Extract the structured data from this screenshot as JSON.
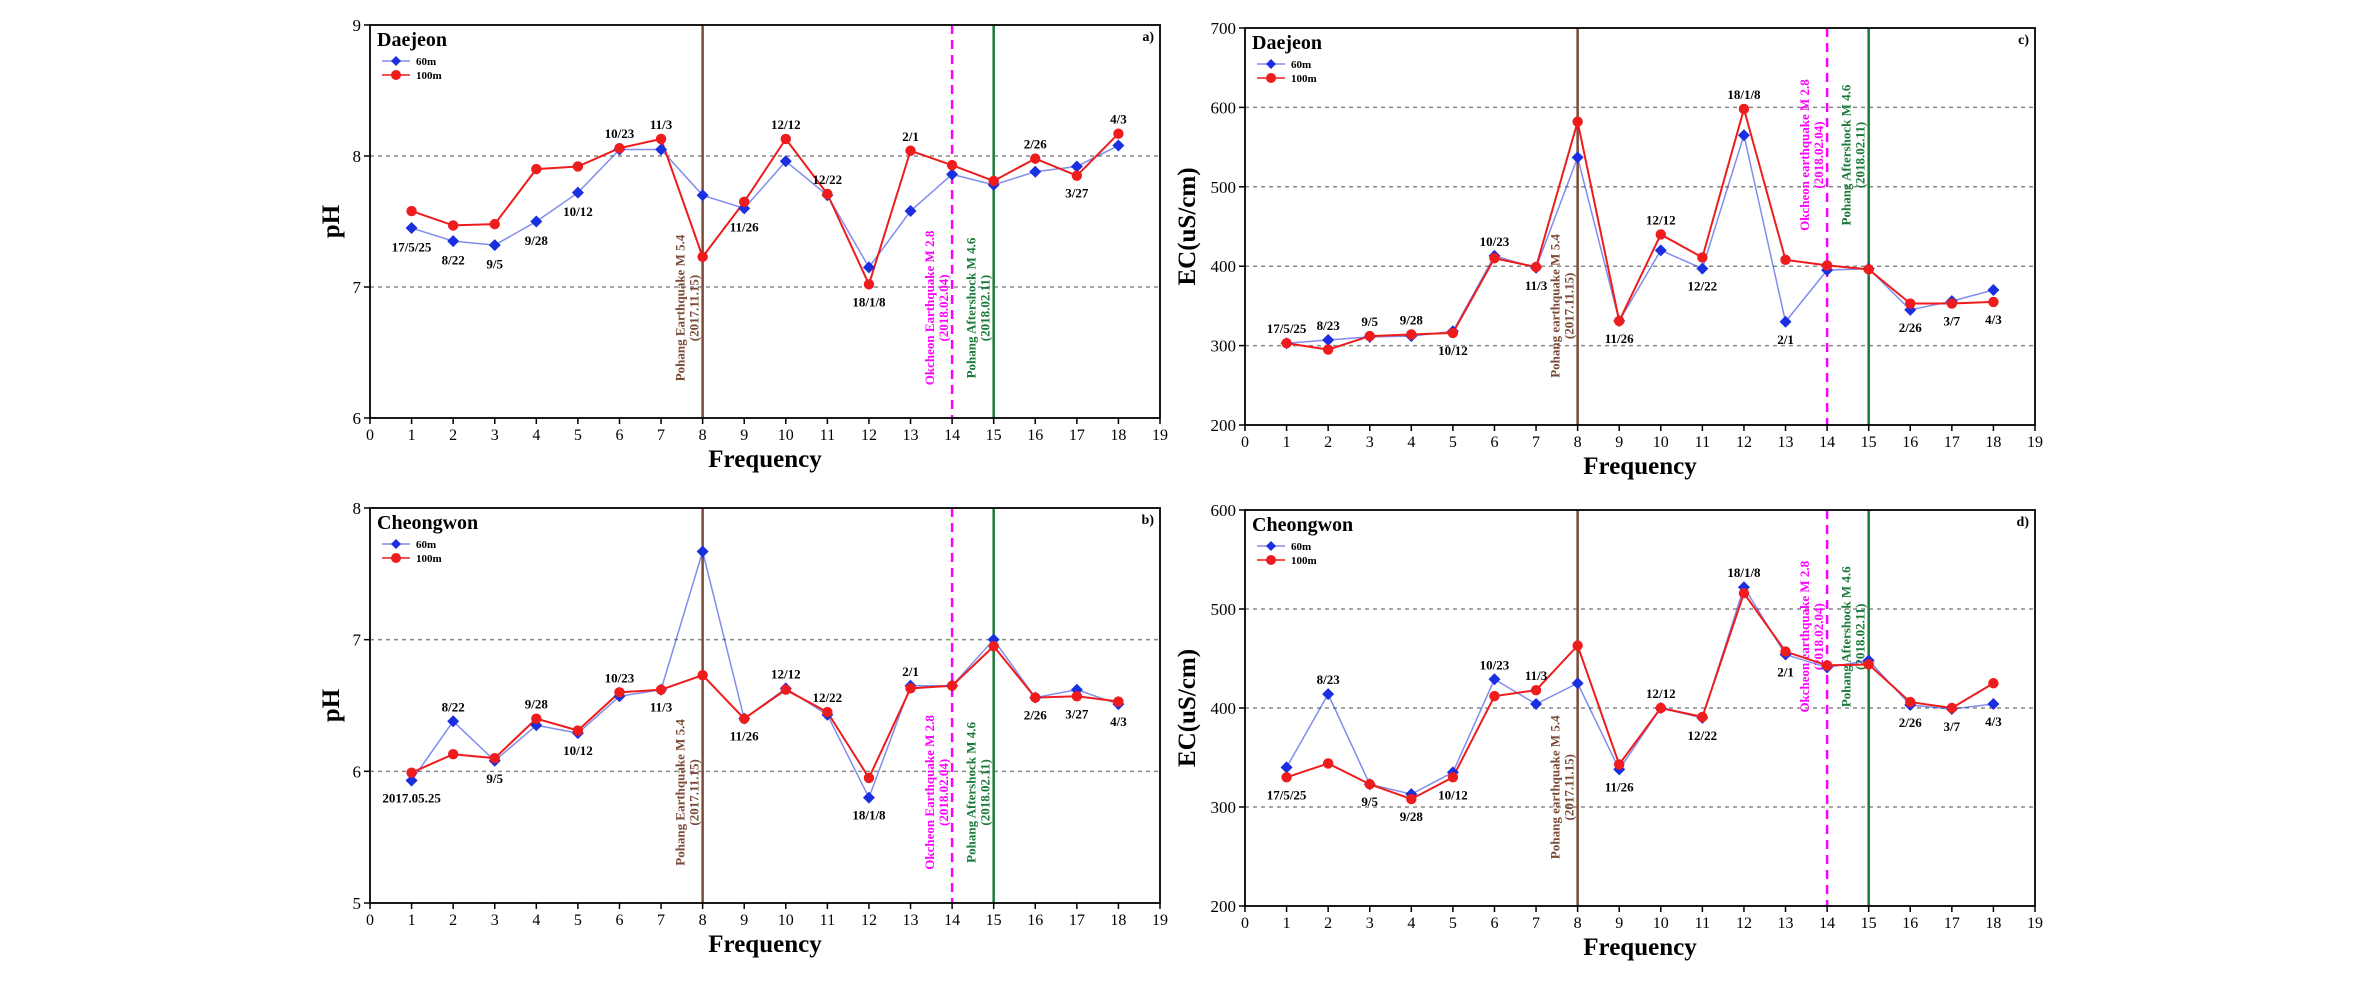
{
  "colors": {
    "series_60m": "#1a2fe0",
    "series_100m": "#ee1c1c",
    "pohang": "#7a4a38",
    "okcheon": "#ff00ff",
    "aftershock": "#1a7a3a",
    "grid": "#888888"
  },
  "chart_data": [
    {
      "type": "line",
      "id": "a",
      "panel_label": "a)",
      "station": "Daejeon",
      "xlabel": "Frequency",
      "ylabel": "pH",
      "xlim": [
        0,
        19
      ],
      "ylim": [
        6,
        9
      ],
      "yticks": [
        6,
        7,
        8,
        9
      ],
      "grid_y": [
        7,
        8
      ],
      "xticks": [
        0,
        1,
        2,
        3,
        4,
        5,
        6,
        7,
        8,
        9,
        10,
        11,
        12,
        13,
        14,
        15,
        16,
        17,
        18,
        19
      ],
      "x": [
        1,
        2,
        3,
        4,
        5,
        6,
        7,
        8,
        9,
        10,
        11,
        12,
        13,
        14,
        15,
        16,
        17,
        18
      ],
      "series": [
        {
          "name": "60m",
          "values": [
            7.45,
            7.35,
            7.32,
            7.5,
            7.72,
            8.05,
            8.05,
            7.7,
            7.6,
            7.96,
            7.7,
            7.15,
            7.58,
            7.86,
            7.78,
            7.88,
            7.92,
            8.08
          ]
        },
        {
          "name": "100m",
          "values": [
            7.58,
            7.47,
            7.48,
            7.9,
            7.92,
            8.06,
            8.13,
            7.23,
            7.65,
            8.13,
            7.71,
            7.02,
            8.04,
            7.93,
            7.81,
            7.98,
            7.85,
            8.17
          ]
        }
      ],
      "annotations": [
        {
          "x": 1,
          "y": 7.44,
          "text": "17/5/25",
          "pos": "below"
        },
        {
          "x": 2,
          "y": 7.34,
          "text": "8/22",
          "pos": "below"
        },
        {
          "x": 3,
          "y": 7.31,
          "text": "9/5",
          "pos": "below"
        },
        {
          "x": 4,
          "y": 7.49,
          "text": "9/28",
          "pos": "below"
        },
        {
          "x": 5,
          "y": 7.71,
          "text": "10/12",
          "pos": "below"
        },
        {
          "x": 6,
          "y": 8.06,
          "text": "10/23",
          "pos": "above"
        },
        {
          "x": 7,
          "y": 8.13,
          "text": "11/3",
          "pos": "above"
        },
        {
          "x": 9,
          "y": 7.59,
          "text": "11/26",
          "pos": "below"
        },
        {
          "x": 10,
          "y": 8.13,
          "text": "12/12",
          "pos": "above"
        },
        {
          "x": 11,
          "y": 7.71,
          "text": "12/22",
          "pos": "above"
        },
        {
          "x": 12,
          "y": 7.02,
          "text": "18/1/8",
          "pos": "below"
        },
        {
          "x": 13,
          "y": 8.04,
          "text": "2/1",
          "pos": "above"
        },
        {
          "x": 16,
          "y": 7.98,
          "text": "2/26",
          "pos": "above"
        },
        {
          "x": 17,
          "y": 7.85,
          "text": "3/27",
          "pos": "below"
        },
        {
          "x": 18,
          "y": 8.17,
          "text": "4/3",
          "pos": "above"
        }
      ],
      "event_lines": [
        {
          "x": 8,
          "type": "pohang",
          "label": "Pohang Earthquake M 5.4",
          "date": "(2017.11.15)"
        },
        {
          "x": 14,
          "type": "okcheon",
          "label": "Okcheon Earthquake M 2.8",
          "date": "(2018.02.04)"
        },
        {
          "x": 15,
          "type": "aftershock",
          "label": "Pohang Aftershock M 4.6",
          "date": "(2018.02.11)"
        }
      ]
    },
    {
      "type": "line",
      "id": "b",
      "panel_label": "b)",
      "station": "Cheongwon",
      "xlabel": "Frequency",
      "ylabel": "pH",
      "xlim": [
        0,
        19
      ],
      "ylim": [
        5,
        8
      ],
      "yticks": [
        5,
        6,
        7,
        8
      ],
      "grid_y": [
        6,
        7
      ],
      "xticks": [
        0,
        1,
        2,
        3,
        4,
        5,
        6,
        7,
        8,
        9,
        10,
        11,
        12,
        13,
        14,
        15,
        16,
        17,
        18,
        19
      ],
      "x": [
        1,
        2,
        3,
        4,
        5,
        6,
        7,
        8,
        9,
        10,
        11,
        12,
        13,
        14,
        15,
        16,
        17,
        18
      ],
      "series": [
        {
          "name": "60m",
          "values": [
            5.93,
            6.38,
            6.08,
            6.35,
            6.29,
            6.57,
            6.62,
            7.67,
            6.4,
            6.63,
            6.43,
            5.8,
            6.65,
            6.65,
            7.0,
            6.56,
            6.62,
            6.51
          ]
        },
        {
          "name": "100m",
          "values": [
            5.99,
            6.13,
            6.1,
            6.4,
            6.31,
            6.6,
            6.62,
            6.73,
            6.4,
            6.62,
            6.45,
            5.95,
            6.63,
            6.65,
            6.95,
            6.56,
            6.57,
            6.53
          ]
        }
      ],
      "annotations": [
        {
          "x": 1,
          "y": 5.93,
          "text": "2017.05.25",
          "pos": "below"
        },
        {
          "x": 2,
          "y": 6.38,
          "text": "8/22",
          "pos": "above"
        },
        {
          "x": 3,
          "y": 6.08,
          "text": "9/5",
          "pos": "below"
        },
        {
          "x": 4,
          "y": 6.4,
          "text": "9/28",
          "pos": "above"
        },
        {
          "x": 5,
          "y": 6.29,
          "text": "10/12",
          "pos": "below"
        },
        {
          "x": 6,
          "y": 6.6,
          "text": "10/23",
          "pos": "above"
        },
        {
          "x": 7,
          "y": 6.62,
          "text": "11/3",
          "pos": "below"
        },
        {
          "x": 9,
          "y": 6.4,
          "text": "11/26",
          "pos": "below"
        },
        {
          "x": 10,
          "y": 6.63,
          "text": "12/12",
          "pos": "above"
        },
        {
          "x": 11,
          "y": 6.45,
          "text": "12/22",
          "pos": "above"
        },
        {
          "x": 12,
          "y": 5.8,
          "text": "18/1/8",
          "pos": "below"
        },
        {
          "x": 13,
          "y": 6.65,
          "text": "2/1",
          "pos": "above"
        },
        {
          "x": 16,
          "y": 6.56,
          "text": "2/26",
          "pos": "below"
        },
        {
          "x": 17,
          "y": 6.57,
          "text": "3/27",
          "pos": "below"
        },
        {
          "x": 18,
          "y": 6.51,
          "text": "4/3",
          "pos": "below"
        }
      ],
      "event_lines": [
        {
          "x": 8,
          "type": "pohang",
          "label": "Pohang Earthquake M 5.4",
          "date": "(2017.11.15)"
        },
        {
          "x": 14,
          "type": "okcheon",
          "label": "Okcheon Earthquake M 2.8",
          "date": "(2018.02.04)"
        },
        {
          "x": 15,
          "type": "aftershock",
          "label": "Pohang Aftershock M 4.6",
          "date": "(2018.02.11)"
        }
      ]
    },
    {
      "type": "line",
      "id": "c",
      "panel_label": "c)",
      "station": "Daejeon",
      "xlabel": "Frequency",
      "ylabel": "EC(uS/cm)",
      "xlim": [
        0,
        19
      ],
      "ylim": [
        200,
        700
      ],
      "yticks": [
        200,
        300,
        400,
        500,
        600,
        700
      ],
      "grid_y": [
        300,
        400,
        500,
        600
      ],
      "xticks": [
        0,
        1,
        2,
        3,
        4,
        5,
        6,
        7,
        8,
        9,
        10,
        11,
        12,
        13,
        14,
        15,
        16,
        17,
        18,
        19
      ],
      "x": [
        1,
        2,
        3,
        4,
        5,
        6,
        7,
        8,
        9,
        10,
        11,
        12,
        13,
        14,
        15,
        16,
        17,
        18
      ],
      "series": [
        {
          "name": "60m",
          "values": [
            303,
            307,
            311,
            312,
            318,
            413,
            398,
            537,
            331,
            420,
            397,
            565,
            330,
            395,
            397,
            345,
            356,
            370
          ]
        },
        {
          "name": "100m",
          "values": [
            303,
            295,
            312,
            314,
            316,
            410,
            399,
            582,
            331,
            440,
            411,
            598,
            408,
            401,
            396,
            353,
            353,
            355
          ]
        }
      ],
      "annotations": [
        {
          "x": 1,
          "y": 303,
          "text": "17/5/25",
          "pos": "above"
        },
        {
          "x": 2,
          "y": 307,
          "text": "8/23",
          "pos": "above"
        },
        {
          "x": 3,
          "y": 312,
          "text": "9/5",
          "pos": "above"
        },
        {
          "x": 4,
          "y": 314,
          "text": "9/28",
          "pos": "above"
        },
        {
          "x": 5,
          "y": 316,
          "text": "10/12",
          "pos": "below"
        },
        {
          "x": 6,
          "y": 413,
          "text": "10/23",
          "pos": "above"
        },
        {
          "x": 7,
          "y": 398,
          "text": "11/3",
          "pos": "below"
        },
        {
          "x": 9,
          "y": 331,
          "text": "11/26",
          "pos": "below"
        },
        {
          "x": 10,
          "y": 440,
          "text": "12/12",
          "pos": "above"
        },
        {
          "x": 11,
          "y": 397,
          "text": "12/22",
          "pos": "below"
        },
        {
          "x": 12,
          "y": 598,
          "text": "18/1/8",
          "pos": "above"
        },
        {
          "x": 13,
          "y": 330,
          "text": "2/1",
          "pos": "below"
        },
        {
          "x": 16,
          "y": 345,
          "text": "2/26",
          "pos": "below"
        },
        {
          "x": 17,
          "y": 353,
          "text": "3/7",
          "pos": "below"
        },
        {
          "x": 18,
          "y": 355,
          "text": "4/3",
          "pos": "below"
        }
      ],
      "event_lines": [
        {
          "x": 8,
          "type": "pohang",
          "label": "Pohang earthquake M 5.4",
          "date": "(2017.11.15)"
        },
        {
          "x": 14,
          "type": "okcheon",
          "label": "Okcheon earthquake M 2.8",
          "date": "(2018.02.04)"
        },
        {
          "x": 15,
          "type": "aftershock",
          "label": "Pohang Aftershock M 4.6",
          "date": "(2018.02.11)"
        }
      ]
    },
    {
      "type": "line",
      "id": "d",
      "panel_label": "d)",
      "station": "Cheongwon",
      "xlabel": "Frequency",
      "ylabel": "EC(uS/cm)",
      "xlim": [
        0,
        19
      ],
      "ylim": [
        200,
        600
      ],
      "yticks": [
        200,
        300,
        400,
        500,
        600
      ],
      "grid_y": [
        300,
        400,
        500
      ],
      "xticks": [
        0,
        1,
        2,
        3,
        4,
        5,
        6,
        7,
        8,
        9,
        10,
        11,
        12,
        13,
        14,
        15,
        16,
        17,
        18,
        19
      ],
      "x": [
        1,
        2,
        3,
        4,
        5,
        6,
        7,
        8,
        9,
        10,
        11,
        12,
        13,
        14,
        15,
        16,
        17,
        18
      ],
      "series": [
        {
          "name": "60m",
          "values": [
            340,
            414,
            323,
            313,
            335,
            429,
            404,
            425,
            338,
            400,
            390,
            522,
            454,
            441,
            448,
            403,
            399,
            404
          ]
        },
        {
          "name": "100m",
          "values": [
            330,
            344,
            323,
            308,
            330,
            412,
            418,
            463,
            343,
            400,
            391,
            516,
            457,
            443,
            444,
            406,
            400,
            425
          ]
        }
      ],
      "annotations": [
        {
          "x": 1,
          "y": 330,
          "text": "17/5/25",
          "pos": "below"
        },
        {
          "x": 2,
          "y": 414,
          "text": "8/23",
          "pos": "above"
        },
        {
          "x": 3,
          "y": 323,
          "text": "9/5",
          "pos": "below"
        },
        {
          "x": 4,
          "y": 308,
          "text": "9/28",
          "pos": "below"
        },
        {
          "x": 5,
          "y": 330,
          "text": "10/12",
          "pos": "below"
        },
        {
          "x": 6,
          "y": 429,
          "text": "10/23",
          "pos": "above"
        },
        {
          "x": 7,
          "y": 418,
          "text": "11/3",
          "pos": "above"
        },
        {
          "x": 9,
          "y": 338,
          "text": "11/26",
          "pos": "below"
        },
        {
          "x": 10,
          "y": 400,
          "text": "12/12",
          "pos": "above"
        },
        {
          "x": 11,
          "y": 390,
          "text": "12/22",
          "pos": "below"
        },
        {
          "x": 12,
          "y": 522,
          "text": "18/1/8",
          "pos": "above"
        },
        {
          "x": 13,
          "y": 454,
          "text": "2/1",
          "pos": "below"
        },
        {
          "x": 16,
          "y": 403,
          "text": "2/26",
          "pos": "below"
        },
        {
          "x": 17,
          "y": 399,
          "text": "3/7",
          "pos": "below"
        },
        {
          "x": 18,
          "y": 404,
          "text": "4/3",
          "pos": "below"
        }
      ],
      "event_lines": [
        {
          "x": 8,
          "type": "pohang",
          "label": "Pohang earthquake M 5.4",
          "date": "(2017.11.15)"
        },
        {
          "x": 14,
          "type": "okcheon",
          "label": "Okcheon earthquake M 2.8",
          "date": "(2018.02.04)"
        },
        {
          "x": 15,
          "type": "aftershock",
          "label": "Pohang Aftershock M 4.6",
          "date": "(2018.02.11)"
        }
      ]
    }
  ]
}
